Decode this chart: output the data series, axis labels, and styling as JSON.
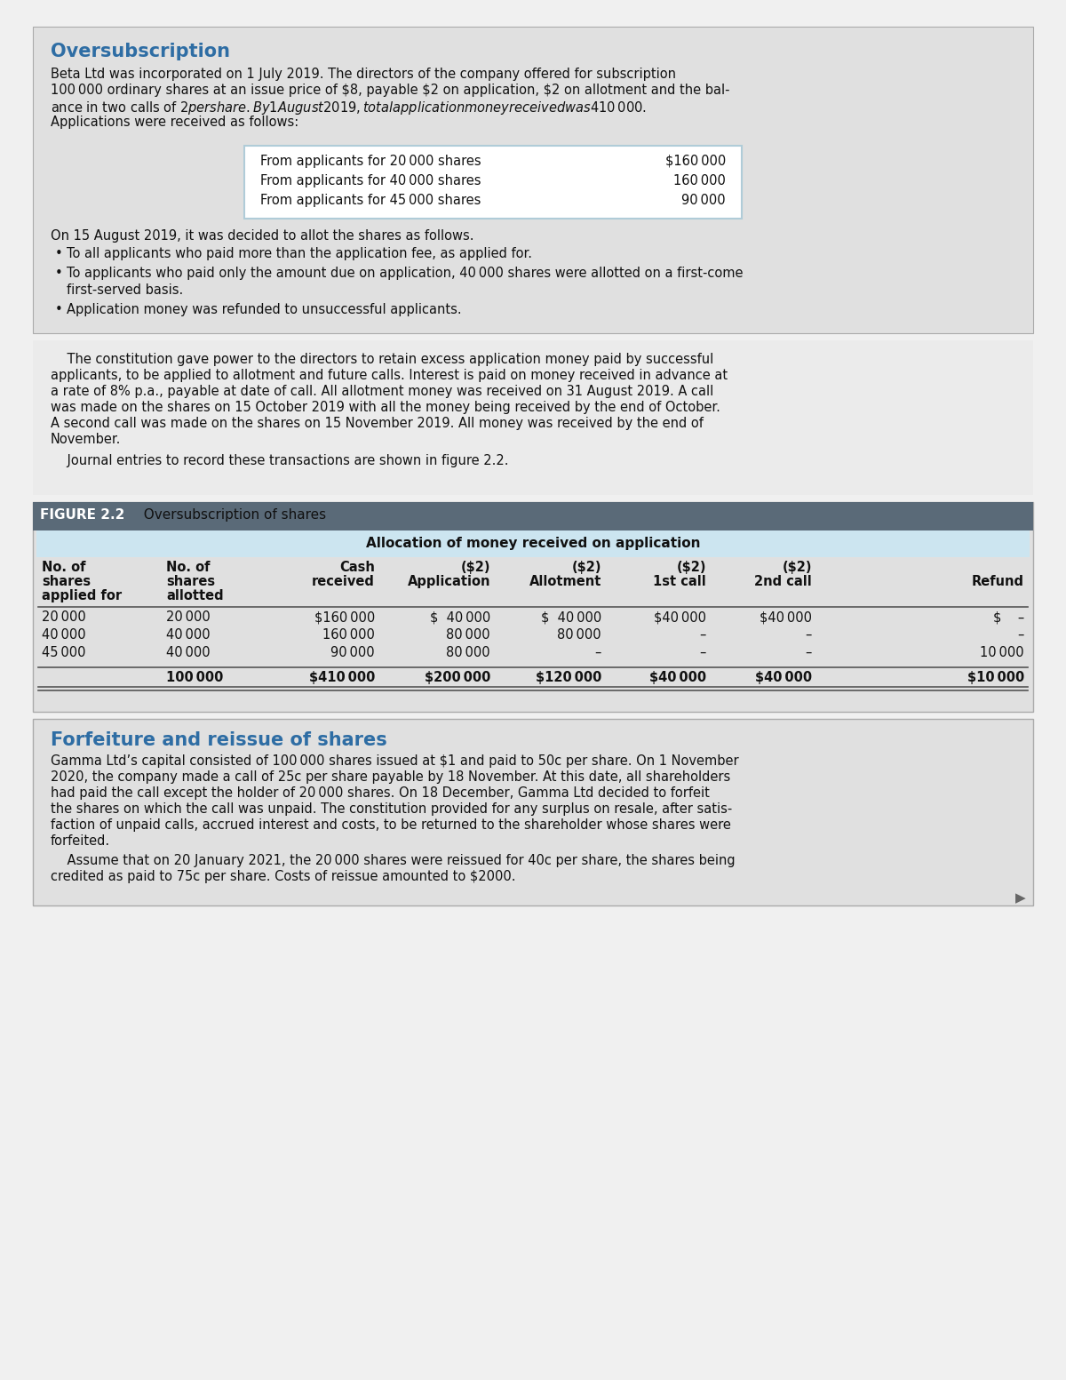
{
  "page_bg": "#f0f0f0",
  "section1_bg": "#e0e0e0",
  "section2_bg": "#ebebeb",
  "section3_bg": "#e0e0e0",
  "section4_bg": "#e0e0e0",
  "white": "#ffffff",
  "light_blue": "#cce5f0",
  "dark_bar": "#5a6a78",
  "text_color": "#111111",
  "title_color": "#2e6da4",
  "border_color": "#aaaaaa",
  "table_border": "#b0ccd8",
  "oversubscription_title": "Oversubscription",
  "oversubscription_para_bold_word": "1",
  "oversubscription_para": "Beta Ltd was incorporated on 1 July 2019. The directors of the company offered for subscription\n100 000 ordinary shares at an issue price of $8, payable $2 on application, $2 on allotment and the bal-\nance in two calls of $2 per share. By 1 August 2019, total application money received was $410 000.\nApplications were received as follows:",
  "small_table_rows": [
    [
      "From applicants for 20 000 shares",
      "$160 000"
    ],
    [
      "From applicants for 40 000 shares",
      "160 000"
    ],
    [
      "From applicants for 45 000 shares",
      "90 000"
    ]
  ],
  "allotment_intro": "On 15 August 2019, it was decided to allot the shares as follows.",
  "bullet_points": [
    "To all applicants who paid more than the application fee, as applied for.",
    "To applicants who paid only the amount due on application, 40 000 shares were allotted on a first-come\n    first-served basis.",
    "Application money was refunded to unsuccessful applicants."
  ],
  "constitution_para": "    The constitution gave power to the directors to retain excess application money paid by successful\napplicants, to be applied to allotment and future calls. Interest is paid on money received in advance at\na rate of 8% p.a., payable at date of call. All allotment money was received on 31 August 2019. A call\nwas made on the shares on 15 October 2019 with all the money being received by the end of October.\nA second call was made on the shares on 15 November 2019. All money was received by the end of\nNovember.",
  "journal_note": "    Journal entries to record these transactions are shown in figure 2.2.",
  "figure_label": "FIGURE 2.2",
  "figure_title": "  Oversubscription of shares",
  "table_alloc_header": "Allocation of money received on application",
  "col_headers_line1": [
    "No. of",
    "No. of",
    "Cash",
    "($2)",
    "($2)",
    "($2)",
    "($2)",
    ""
  ],
  "col_headers_line2": [
    "shares",
    "shares",
    "received",
    "Application",
    "Allotment",
    "1st call",
    "2nd call",
    "Refund"
  ],
  "col_headers_line3": [
    "applied for",
    "allotted",
    "",
    "",
    "",
    "",
    "",
    ""
  ],
  "table_rows": [
    [
      "20 000",
      "20 000",
      "$160 000",
      "$  40 000",
      "$  40 000",
      "$40 000",
      "$40 000",
      "$    –"
    ],
    [
      "40 000",
      "40 000",
      "160 000",
      "80 000",
      "80 000",
      "–",
      "–",
      "–"
    ],
    [
      "45 000",
      "40 000",
      "90 000",
      "80 000",
      "–",
      "–",
      "–",
      "10 000"
    ]
  ],
  "table_total": [
    "",
    "100 000",
    "$410 000",
    "$200 000",
    "$120 000",
    "$40 000",
    "$40 000",
    "$10 000"
  ],
  "forfeiture_title": "Forfeiture and reissue of shares",
  "forfeiture_para1": "Gamma Ltd’s capital consisted of 100 000 shares issued at $1 and paid to 50c per share. On 1 November\n2020, the company made a call of 25c per share payable by 18 November. At this date, all shareholders\nhad paid the call except the holder of 20 000 shares. On 18 December, Gamma Ltd decided to forfeit\nthe shares on which the call was unpaid. The constitution provided for any surplus on resale, after satis-\nfaction of unpaid calls, accrued interest and costs, to be returned to the shareholder whose shares were\nforfeited.",
  "forfeiture_para2": "    Assume that on 20 January 2021, the 20 000 shares were reissued for 40c per share, the shares being\ncredited as paid to 75c per share. Costs of reissue amounted to $2000."
}
